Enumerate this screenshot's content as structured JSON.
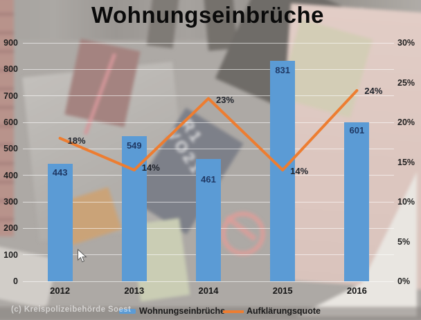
{
  "title": "Wohnungseinbrüche",
  "copyright": "(c) Kreispolizeibehörde Soest",
  "photo_text": "R1\nVO21",
  "legend": {
    "items": [
      {
        "label": "Wohnungseinbrüche",
        "marker": "bar-swatch",
        "color": "#5B9BD5"
      },
      {
        "label": "Aufklärungsquote",
        "marker": "line-swatch",
        "color": "#ED7D31"
      }
    ]
  },
  "chart_data": {
    "type": "bar",
    "subtype": "bar-line-combo",
    "title": "Wohnungseinbrüche",
    "categories": [
      "2012",
      "2013",
      "2014",
      "2015",
      "2016"
    ],
    "series": [
      {
        "name": "Wohnungseinbrüche",
        "type": "bar",
        "axis": "left",
        "color": "#5B9BD5",
        "values": [
          443,
          549,
          461,
          831,
          601
        ],
        "data_labels": [
          "443",
          "549",
          "461",
          "831",
          "601"
        ]
      },
      {
        "name": "Aufklärungsquote",
        "type": "line",
        "axis": "right",
        "color": "#ED7D31",
        "values": [
          18,
          14,
          23,
          14,
          24
        ],
        "data_labels": [
          "18%",
          "14%",
          "23%",
          "14%",
          "24%"
        ]
      }
    ],
    "left_axis": {
      "min": 0,
      "max": 900,
      "step": 100,
      "tick_labels": [
        "0",
        "100",
        "200",
        "300",
        "400",
        "500",
        "600",
        "700",
        "800",
        "900"
      ]
    },
    "right_axis": {
      "min": 0,
      "max": 30,
      "step": 5,
      "tick_labels": [
        "0%",
        "5%",
        "10%",
        "15%",
        "20%",
        "25%",
        "30%"
      ]
    },
    "grid": true,
    "legend_position": "bottom"
  },
  "colors": {
    "bar": "#5B9BD5",
    "line": "#ED7D31",
    "bar_label": "#1F3864",
    "axis_text": "#1f1f1f",
    "title_text": "#0a0a0a",
    "gridline": "rgba(255,255,255,0.6)"
  }
}
